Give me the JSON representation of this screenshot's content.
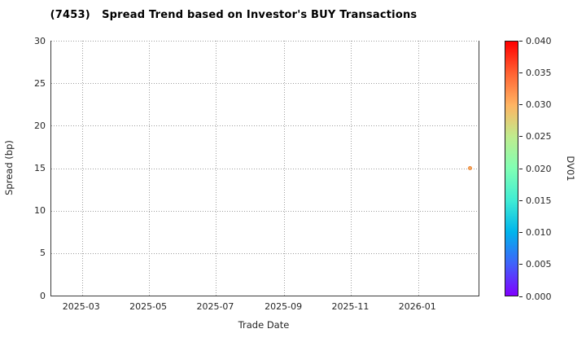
{
  "accent_colors": {
    "marker": "#f8a75c",
    "marker_edge": "#e8883c",
    "grid": "#9e9e9e",
    "spine": "#3b3b3b",
    "text": "#262626"
  },
  "chart_data": {
    "type": "scatter",
    "title": "(7453)   Spread Trend based on Investor's BUY Transactions",
    "xlabel": "Trade Date",
    "ylabel": "Spread (bp)",
    "xlim": [
      "2025-02-01",
      "2026-02-25"
    ],
    "ylim": [
      0,
      30
    ],
    "yticks": [
      0,
      5,
      10,
      15,
      20,
      25,
      30
    ],
    "xticks": [
      {
        "date": "2025-03-01",
        "label": "2025-03"
      },
      {
        "date": "2025-05-01",
        "label": "2025-05"
      },
      {
        "date": "2025-07-01",
        "label": "2025-07"
      },
      {
        "date": "2025-09-01",
        "label": "2025-09"
      },
      {
        "date": "2025-11-01",
        "label": "2025-11"
      },
      {
        "date": "2026-01-01",
        "label": "2026-01"
      }
    ],
    "grid": true,
    "grid_style": "dotted",
    "points": [
      {
        "date": "2026-02-17",
        "spread_bp": 15,
        "dv01": 0.03,
        "color": "#f8a75c"
      }
    ],
    "colorbar": {
      "label": "DV01",
      "vmin": 0.0,
      "vmax": 0.04,
      "ticks": [
        "0.000",
        "0.005",
        "0.010",
        "0.015",
        "0.020",
        "0.025",
        "0.030",
        "0.035",
        "0.040"
      ],
      "colormap": "rainbow",
      "gradient": [
        "#8000ff",
        "#4062fa",
        "#00b4ec",
        "#40ecd4",
        "#80ffb4",
        "#bfec8e",
        "#ffb462",
        "#ff6232",
        "#ff0000"
      ]
    }
  }
}
